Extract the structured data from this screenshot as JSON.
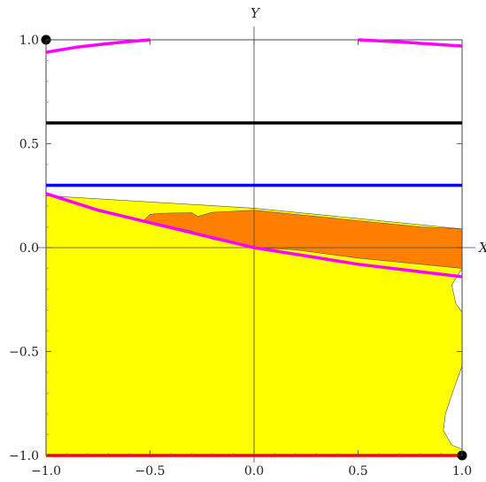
{
  "chart_data": {
    "type": "area",
    "title": "",
    "xlabel": "X",
    "ylabel": "Y",
    "xlim": [
      -1.0,
      1.0
    ],
    "ylim": [
      -1.0,
      1.0
    ],
    "x_ticks": [
      -1.0,
      -0.5,
      0.0,
      0.5,
      1.0
    ],
    "x_tick_labels": [
      "−1.0",
      "−0.5",
      "0.0",
      "0.5",
      "1.0"
    ],
    "y_ticks": [
      -1.0,
      -0.5,
      0.0,
      0.5,
      1.0
    ],
    "y_tick_labels": [
      "−1.0",
      "−0.5",
      "0.0",
      "0.5",
      "1.0"
    ],
    "grid": false,
    "frame": true,
    "axes_through_origin": true,
    "colors": {
      "yellow_region": "#ffff00",
      "orange_region": "#ff8000",
      "magenta_curve": "#ff00ff",
      "black_line": "#000000",
      "blue_line": "#0000ff",
      "red_line": "#ff0000",
      "points": "#000000"
    },
    "regions": [
      {
        "color": "yellow",
        "points": [
          [
            -1.0,
            0.25
          ],
          [
            0.0,
            0.19
          ],
          [
            0.5,
            0.14
          ],
          [
            1.0,
            0.09
          ],
          [
            1.0,
            -0.1
          ],
          [
            0.95,
            -0.18
          ],
          [
            0.97,
            -0.27
          ],
          [
            1.0,
            -0.31
          ],
          [
            1.0,
            -0.57
          ],
          [
            0.96,
            -0.68
          ],
          [
            0.92,
            -0.8
          ],
          [
            0.91,
            -0.88
          ],
          [
            0.95,
            -0.95
          ],
          [
            1.0,
            -0.97
          ],
          [
            1.0,
            -1.0
          ],
          [
            -1.0,
            -1.0
          ]
        ]
      },
      {
        "color": "orange",
        "points": [
          [
            -0.27,
            0.15
          ],
          [
            -0.2,
            0.17
          ],
          [
            0.0,
            0.18
          ],
          [
            0.2,
            0.16
          ],
          [
            0.5,
            0.13
          ],
          [
            0.8,
            0.1
          ],
          [
            1.0,
            0.09
          ],
          [
            1.0,
            -0.1
          ],
          [
            0.8,
            -0.08
          ],
          [
            0.5,
            -0.05
          ],
          [
            0.2,
            -0.01
          ],
          [
            0.0,
            0.0
          ],
          [
            -0.2,
            0.04
          ],
          [
            -0.3,
            0.08
          ],
          [
            -0.53,
            0.13
          ],
          [
            -0.5,
            0.16
          ],
          [
            -0.45,
            0.165
          ],
          [
            -0.3,
            0.168
          ]
        ]
      }
    ],
    "series": [
      {
        "color": "magenta",
        "points": [
          [
            -1.0,
            0.26
          ],
          [
            -0.75,
            0.18
          ],
          [
            -0.5,
            0.12
          ],
          [
            -0.25,
            0.06
          ],
          [
            0.0,
            0.0
          ],
          [
            0.25,
            -0.04
          ],
          [
            0.5,
            -0.08
          ],
          [
            0.75,
            -0.11
          ],
          [
            1.0,
            -0.14
          ]
        ]
      },
      {
        "color": "magenta",
        "points": [
          [
            -1.0,
            0.94
          ],
          [
            -0.85,
            0.965
          ],
          [
            -0.7,
            0.982
          ],
          [
            -0.5,
            1.0
          ]
        ]
      },
      {
        "color": "magenta",
        "points": [
          [
            0.5,
            1.0
          ],
          [
            0.7,
            0.99
          ],
          [
            0.85,
            0.98
          ],
          [
            1.0,
            0.97
          ]
        ]
      },
      {
        "color": "black",
        "points": [
          [
            -1.0,
            0.6
          ],
          [
            1.0,
            0.6
          ]
        ]
      },
      {
        "color": "blue",
        "points": [
          [
            -1.0,
            0.3
          ],
          [
            1.0,
            0.3
          ]
        ]
      },
      {
        "color": "red",
        "points": [
          [
            -1.0,
            -1.0
          ],
          [
            1.0,
            -1.0
          ]
        ]
      }
    ],
    "markers": [
      {
        "x": -1.0,
        "y": 1.0
      },
      {
        "x": 1.0,
        "y": -1.0
      }
    ]
  }
}
